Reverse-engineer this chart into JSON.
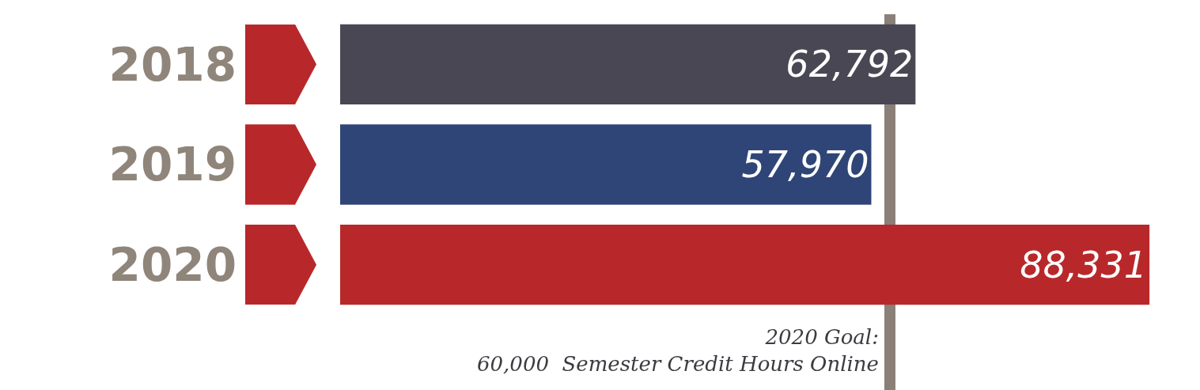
{
  "chart_data": {
    "type": "bar",
    "orientation": "horizontal",
    "categories": [
      "2018",
      "2019",
      "2020"
    ],
    "values": [
      62792,
      57970,
      88331
    ],
    "colors": [
      "#4a4754",
      "#2f4577",
      "#b8282a"
    ],
    "data_labels": true,
    "value_labels": [
      "62,792",
      "57,970",
      "88,331"
    ],
    "ref_lines": [
      {
        "axis": "x",
        "value": 60000,
        "label": "2020 Goal:\n60,000  Semester Credit Hours Online",
        "color": "#8a8078"
      }
    ],
    "grid": false
  }
}
